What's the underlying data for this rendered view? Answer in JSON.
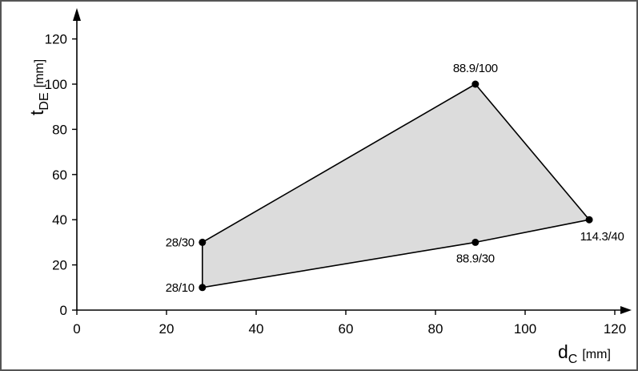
{
  "chart_data": {
    "type": "area",
    "xlabel": {
      "main": "d",
      "sub": "C",
      "unit": "[mm]"
    },
    "ylabel": {
      "main": "t",
      "sub": "DE",
      "unit": "[mm]"
    },
    "xlim": [
      0,
      125
    ],
    "ylim": [
      0,
      135
    ],
    "xticks": [
      0,
      20,
      40,
      60,
      80,
      100,
      120
    ],
    "yticks": [
      0,
      20,
      40,
      60,
      80,
      100,
      120
    ],
    "grid": false,
    "colors": {
      "fill": "#dcdcdc",
      "stroke": "#000000",
      "frame": "#555555"
    },
    "region": [
      {
        "x": 28,
        "y": 10
      },
      {
        "x": 28,
        "y": 30
      },
      {
        "x": 88.9,
        "y": 100
      },
      {
        "x": 114.3,
        "y": 40
      },
      {
        "x": 88.9,
        "y": 30
      }
    ],
    "points": [
      {
        "x": 28,
        "y": 30,
        "label": "28/30",
        "anchor": "left"
      },
      {
        "x": 28,
        "y": 10,
        "label": "28/10",
        "anchor": "left"
      },
      {
        "x": 88.9,
        "y": 100,
        "label": "88.9/100",
        "anchor": "above"
      },
      {
        "x": 88.9,
        "y": 30,
        "label": "88.9/30",
        "anchor": "below"
      },
      {
        "x": 114.3,
        "y": 40,
        "label": "114.3/40",
        "anchor": "below-right"
      }
    ]
  }
}
